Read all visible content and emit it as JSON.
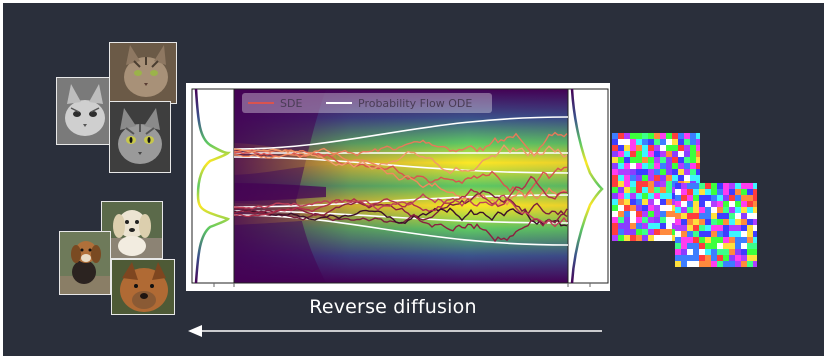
{
  "legend": {
    "sde_label": "SDE",
    "ode_label": "Probability Flow ODE",
    "sde_color": "#d9534f",
    "ode_color": "#ffffff"
  },
  "caption": "Reverse diffusion",
  "images": {
    "cats": [
      "cat-photo",
      "cat-photo",
      "cat-photo"
    ],
    "dogs": [
      "dog-photo",
      "dog-photo",
      "dog-photo"
    ],
    "noise": [
      "random-noise-image",
      "random-noise-image"
    ]
  },
  "colors": {
    "background": "#2a2f3b",
    "arrow": "#ffffff",
    "density_low": "#440154",
    "density_mid": "#21918c",
    "density_high": "#fde725"
  }
}
